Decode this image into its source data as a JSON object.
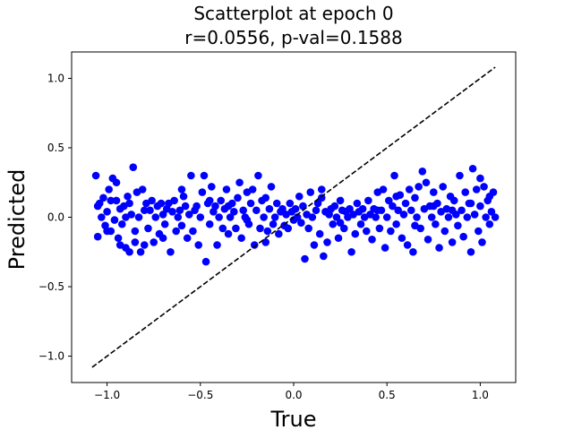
{
  "chart_data": {
    "type": "scatter",
    "title": "Scatterplot at epoch 0",
    "subtitle": "r=0.0556, p-val=0.1588",
    "xlabel": "True",
    "ylabel": "Predicted",
    "xlim": [
      -1.19,
      1.19
    ],
    "ylim": [
      -1.19,
      1.19
    ],
    "x_ticks": [
      -1.0,
      -0.5,
      0.0,
      0.5,
      1.0
    ],
    "x_tick_labels": [
      "−1.0",
      "−0.5",
      "0.0",
      "0.5",
      "1.0"
    ],
    "y_ticks": [
      -1.0,
      -0.5,
      0.0,
      0.5,
      1.0
    ],
    "y_tick_labels": [
      "−1.0",
      "−0.5",
      "0.0",
      "0.5",
      "1.0"
    ],
    "grid": false,
    "point_color": "#0000ff",
    "line_color": "#000000",
    "reference_line": {
      "style": "dashed",
      "from": [
        -1.08,
        -1.08
      ],
      "to": [
        1.08,
        1.08
      ]
    },
    "series": [
      {
        "points": [
          [
            -1.06,
            0.3
          ],
          [
            -1.05,
            -0.14
          ],
          [
            -1.04,
            0.1
          ],
          [
            -1.03,
            0.0
          ],
          [
            -1.02,
            0.14
          ],
          [
            -1.01,
            -0.06
          ],
          [
            -1.0,
            0.04
          ],
          [
            -0.99,
            0.2
          ],
          [
            -0.98,
            -0.1
          ],
          [
            -0.97,
            0.28
          ],
          [
            -0.96,
            -0.02
          ],
          [
            -0.95,
            0.12
          ],
          [
            -0.94,
            -0.15
          ],
          [
            -0.93,
            0.06
          ],
          [
            -0.92,
            -0.05
          ],
          [
            -0.91,
            0.08
          ],
          [
            -0.9,
            -0.22
          ],
          [
            -0.89,
            0.15
          ],
          [
            -0.88,
            -0.25
          ],
          [
            -0.87,
            0.02
          ],
          [
            -0.86,
            0.36
          ],
          [
            -0.85,
            -0.1
          ],
          [
            -0.84,
            0.18
          ],
          [
            -0.83,
            0.0
          ],
          [
            -0.82,
            -0.25
          ],
          [
            -0.81,
            0.2
          ],
          [
            -0.8,
            -0.2
          ],
          [
            -0.79,
            0.1
          ],
          [
            -0.78,
            -0.08
          ],
          [
            -0.77,
            0.05
          ],
          [
            -0.76,
            0.12
          ],
          [
            -0.75,
            -0.18
          ],
          [
            -0.74,
            0.0
          ],
          [
            -0.73,
            0.08
          ],
          [
            -0.72,
            -0.12
          ],
          [
            -0.71,
            0.1
          ],
          [
            -0.7,
            0.02
          ],
          [
            -0.69,
            -0.05
          ],
          [
            -0.68,
            0.06
          ],
          [
            -0.67,
            0.1
          ],
          [
            -0.66,
            -0.25
          ],
          [
            -0.65,
            0.04
          ],
          [
            -0.64,
            0.12
          ],
          [
            -0.63,
            -0.1
          ],
          [
            -0.62,
            0.0
          ],
          [
            -0.61,
            0.05
          ],
          [
            -0.6,
            -0.06
          ],
          [
            -0.59,
            0.15
          ],
          [
            -0.58,
            0.08
          ],
          [
            -0.57,
            -0.15
          ],
          [
            -0.56,
            0.02
          ],
          [
            -0.55,
            0.3
          ],
          [
            -0.54,
            -0.1
          ],
          [
            -0.53,
            0.05
          ],
          [
            -0.52,
            0.08
          ],
          [
            -0.51,
            -0.2
          ],
          [
            -0.5,
            0.0
          ],
          [
            -0.49,
            0.18
          ],
          [
            -0.48,
            0.3
          ],
          [
            -0.47,
            -0.32
          ],
          [
            -0.46,
            0.1
          ],
          [
            -0.45,
            -0.05
          ],
          [
            -0.44,
            0.22
          ],
          [
            -0.43,
            0.04
          ],
          [
            -0.42,
            0.08
          ],
          [
            -0.41,
            -0.2
          ],
          [
            -0.4,
            0.0
          ],
          [
            -0.39,
            0.12
          ],
          [
            -0.38,
            -0.08
          ],
          [
            -0.37,
            0.06
          ],
          [
            -0.36,
            0.2
          ],
          [
            -0.35,
            -0.12
          ],
          [
            -0.34,
            0.0
          ],
          [
            -0.33,
            0.1
          ],
          [
            -0.32,
            0.04
          ],
          [
            -0.31,
            -0.08
          ],
          [
            -0.3,
            0.14
          ],
          [
            -0.29,
            0.25
          ],
          [
            -0.28,
            -0.15
          ],
          [
            -0.27,
            0.05
          ],
          [
            -0.26,
            0.0
          ],
          [
            -0.25,
            0.18
          ],
          [
            -0.24,
            -0.05
          ],
          [
            -0.23,
            0.1
          ],
          [
            -0.22,
            0.2
          ],
          [
            -0.21,
            -0.2
          ],
          [
            -0.2,
            0.05
          ],
          [
            -0.19,
            0.3
          ],
          [
            -0.18,
            -0.08
          ],
          [
            -0.17,
            0.12
          ],
          [
            -0.16,
            0.0
          ],
          [
            -0.15,
            0.14
          ],
          [
            -0.14,
            -0.1
          ],
          [
            -0.13,
            0.06
          ],
          [
            -0.12,
            0.22
          ],
          [
            -0.11,
            -0.05
          ],
          [
            -0.1,
            0.0
          ],
          [
            -0.09,
            0.1
          ],
          [
            -0.08,
            -0.12
          ],
          [
            -0.07,
            0.04
          ],
          [
            -0.06,
            0.06
          ],
          [
            -0.05,
            -0.06
          ],
          [
            -0.04,
            0.02
          ],
          [
            -0.03,
            -0.08
          ],
          [
            -0.02,
            0.1
          ],
          [
            -0.01,
            0.04
          ],
          [
            0.0,
            -0.02
          ],
          [
            0.01,
            0.06
          ],
          [
            0.02,
            0.0
          ],
          [
            0.03,
            0.15
          ],
          [
            0.04,
            -0.04
          ],
          [
            0.05,
            0.08
          ],
          [
            0.06,
            -0.3
          ],
          [
            0.07,
            0.02
          ],
          [
            0.08,
            -0.08
          ],
          [
            0.09,
            0.18
          ],
          [
            0.1,
            0.0
          ],
          [
            0.11,
            -0.2
          ],
          [
            0.12,
            0.05
          ],
          [
            0.13,
            0.1
          ],
          [
            0.14,
            -0.12
          ],
          [
            0.15,
            0.14
          ],
          [
            0.16,
            -0.28
          ],
          [
            0.17,
            0.04
          ],
          [
            0.18,
            -0.18
          ],
          [
            0.19,
            0.02
          ],
          [
            0.2,
            0.06
          ],
          [
            0.21,
            -0.05
          ],
          [
            0.22,
            0.08
          ],
          [
            0.23,
            0.0
          ],
          [
            0.24,
            -0.15
          ],
          [
            0.25,
            0.12
          ],
          [
            0.26,
            0.05
          ],
          [
            0.27,
            -0.08
          ],
          [
            0.28,
            0.04
          ],
          [
            0.29,
            0.0
          ],
          [
            0.3,
            0.06
          ],
          [
            0.31,
            -0.25
          ],
          [
            0.32,
            0.02
          ],
          [
            0.33,
            -0.12
          ],
          [
            0.34,
            0.1
          ],
          [
            0.35,
            0.04
          ],
          [
            0.36,
            -0.05
          ],
          [
            0.37,
            0.06
          ],
          [
            0.38,
            0.0
          ],
          [
            0.39,
            -0.1
          ],
          [
            0.4,
            0.12
          ],
          [
            0.41,
            0.02
          ],
          [
            0.42,
            -0.16
          ],
          [
            0.43,
            0.06
          ],
          [
            0.44,
            0.0
          ],
          [
            0.45,
            0.18
          ],
          [
            0.46,
            -0.08
          ],
          [
            0.47,
            0.05
          ],
          [
            0.48,
            0.2
          ],
          [
            0.49,
            -0.22
          ],
          [
            0.5,
            0.0
          ],
          [
            0.51,
            0.12
          ],
          [
            0.52,
            -0.1
          ],
          [
            0.53,
            0.08
          ],
          [
            0.54,
            0.3
          ],
          [
            0.55,
            -0.05
          ],
          [
            0.56,
            0.05
          ],
          [
            0.57,
            0.16
          ],
          [
            0.58,
            -0.15
          ],
          [
            0.59,
            0.02
          ],
          [
            0.6,
            0.1
          ],
          [
            0.61,
            -0.2
          ],
          [
            0.62,
            0.2
          ],
          [
            0.63,
            0.05
          ],
          [
            0.64,
            -0.25
          ],
          [
            0.65,
            0.14
          ],
          [
            0.66,
            0.0
          ],
          [
            0.67,
            0.22
          ],
          [
            0.68,
            -0.08
          ],
          [
            0.69,
            0.33
          ],
          [
            0.7,
            0.06
          ],
          [
            0.71,
            0.25
          ],
          [
            0.72,
            -0.16
          ],
          [
            0.73,
            0.08
          ],
          [
            0.74,
            0.0
          ],
          [
            0.75,
            0.18
          ],
          [
            0.76,
            -0.05
          ],
          [
            0.77,
            0.1
          ],
          [
            0.78,
            -0.22
          ],
          [
            0.79,
            0.04
          ],
          [
            0.8,
            0.22
          ],
          [
            0.81,
            -0.1
          ],
          [
            0.82,
            0.06
          ],
          [
            0.83,
            0.0
          ],
          [
            0.84,
            0.15
          ],
          [
            0.85,
            -0.18
          ],
          [
            0.86,
            0.12
          ],
          [
            0.87,
            0.02
          ],
          [
            0.88,
            -0.06
          ],
          [
            0.89,
            0.3
          ],
          [
            0.9,
            0.05
          ],
          [
            0.91,
            -0.14
          ],
          [
            0.92,
            0.18
          ],
          [
            0.93,
            0.0
          ],
          [
            0.94,
            0.1
          ],
          [
            0.95,
            -0.25
          ],
          [
            0.96,
            0.35
          ],
          [
            0.97,
            0.02
          ],
          [
            0.98,
            0.2
          ],
          [
            0.99,
            -0.1
          ],
          [
            1.0,
            0.08
          ],
          [
            1.01,
            -0.18
          ],
          [
            1.02,
            0.22
          ],
          [
            1.03,
            0.0
          ],
          [
            1.04,
            0.12
          ],
          [
            1.05,
            -0.05
          ],
          [
            1.06,
            0.04
          ],
          [
            1.07,
            0.18
          ],
          [
            1.08,
            0.0
          ],
          [
            -1.0,
            -0.1
          ],
          [
            -0.95,
            0.25
          ],
          [
            -0.9,
            0.0
          ],
          [
            -0.85,
            -0.18
          ],
          [
            -0.8,
            0.05
          ],
          [
            -0.7,
            -0.15
          ],
          [
            -0.6,
            0.2
          ],
          [
            -0.45,
            0.12
          ],
          [
            -0.35,
            0.08
          ],
          [
            -0.25,
            -0.02
          ],
          [
            -0.15,
            -0.18
          ],
          [
            0.15,
            0.2
          ],
          [
            0.25,
            -0.04
          ],
          [
            0.45,
            0.05
          ],
          [
            0.55,
            0.15
          ],
          [
            0.65,
            -0.06
          ],
          [
            0.75,
            0.08
          ],
          [
            0.85,
            0.05
          ],
          [
            0.95,
            0.1
          ],
          [
            1.0,
            0.28
          ],
          [
            1.05,
            0.15
          ],
          [
            -1.05,
            0.08
          ],
          [
            -0.98,
            0.12
          ],
          [
            -0.93,
            -0.2
          ],
          [
            -0.88,
            0.1
          ]
        ]
      }
    ]
  }
}
